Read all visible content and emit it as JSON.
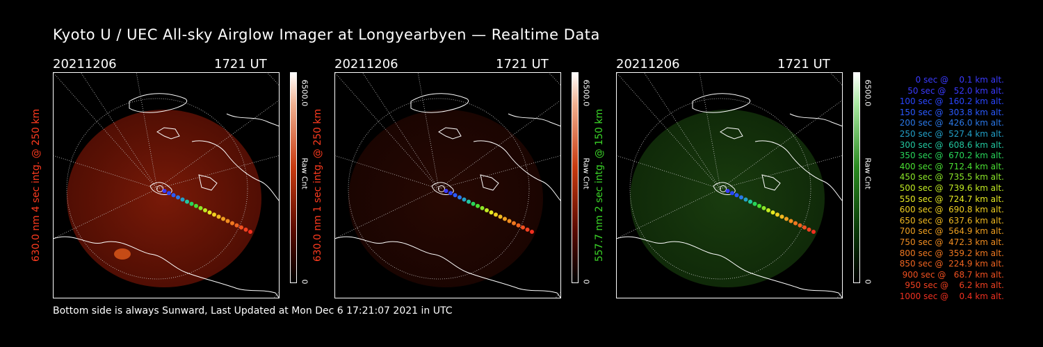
{
  "title": "Kyoto U / UEC All-sky Airglow Imager at Longyearbyen — Realtime Data",
  "footer": "Bottom side is always Sunward, Last Updated at Mon Dec  6 17:21:07 2021 in UTC",
  "panels": [
    {
      "date": "20211206",
      "time": "1721 UT",
      "label": "630.0 nm 4 sec intg. @ 250 km",
      "label_color": "#ff3b1f",
      "cbar_max": "6500.0",
      "cbar_unit": "Raw Cnt",
      "cbar_min": "0",
      "colorbar": "red",
      "brightness": 0.55
    },
    {
      "date": "20211206",
      "time": "1721 UT",
      "label": "630.0 nm 1 sec intg. @ 250 km",
      "label_color": "#ff3b1f",
      "cbar_max": "6500.0",
      "cbar_unit": "Raw Cnt",
      "cbar_min": "0",
      "colorbar": "red",
      "brightness": 0.18
    },
    {
      "date": "20211206",
      "time": "1721 UT",
      "label": "557.7 nm 2 sec intg. @ 150 km",
      "label_color": "#3bd628",
      "cbar_max": "6500.0",
      "cbar_unit": "Raw Cnt",
      "cbar_min": "0",
      "colorbar": "green",
      "brightness": 0.45
    }
  ],
  "legend": [
    {
      "text": "   0 sec @    0.1 km alt.",
      "color": "#3a3aff"
    },
    {
      "text": "  50 sec @   52.0 km alt.",
      "color": "#3a3aff"
    },
    {
      "text": " 100 sec @  160.2 km alt.",
      "color": "#2a46ff"
    },
    {
      "text": " 150 sec @  303.8 km alt.",
      "color": "#2a5aff"
    },
    {
      "text": " 200 sec @  426.0 km alt.",
      "color": "#2a78e8"
    },
    {
      "text": " 250 sec @  527.4 km alt.",
      "color": "#22a0c8"
    },
    {
      "text": " 300 sec @  608.6 km alt.",
      "color": "#22c8a0"
    },
    {
      "text": " 350 sec @  670.2 km alt.",
      "color": "#28d65a"
    },
    {
      "text": " 400 sec @  712.4 km alt.",
      "color": "#4ae032"
    },
    {
      "text": " 450 sec @  735.5 km alt.",
      "color": "#8ae628"
    },
    {
      "text": " 500 sec @  739.6 km alt.",
      "color": "#c0ea22"
    },
    {
      "text": " 550 sec @  724.7 km alt.",
      "color": "#e6ea22"
    },
    {
      "text": " 600 sec @  690.8 km alt.",
      "color": "#f0d020"
    },
    {
      "text": " 650 sec @  637.6 km alt.",
      "color": "#f0b820"
    },
    {
      "text": " 700 sec @  564.9 km alt.",
      "color": "#f0a020"
    },
    {
      "text": " 750 sec @  472.3 km alt.",
      "color": "#f08c20"
    },
    {
      "text": " 800 sec @  359.2 km alt.",
      "color": "#f07820"
    },
    {
      "text": " 850 sec @  224.9 km alt.",
      "color": "#f06420"
    },
    {
      "text": " 900 sec @   68.7 km alt.",
      "color": "#f05020"
    },
    {
      "text": " 950 sec @    6.2 km alt.",
      "color": "#f04020"
    },
    {
      "text": "1000 sec @    0.4 km alt.",
      "color": "#f03020"
    }
  ]
}
